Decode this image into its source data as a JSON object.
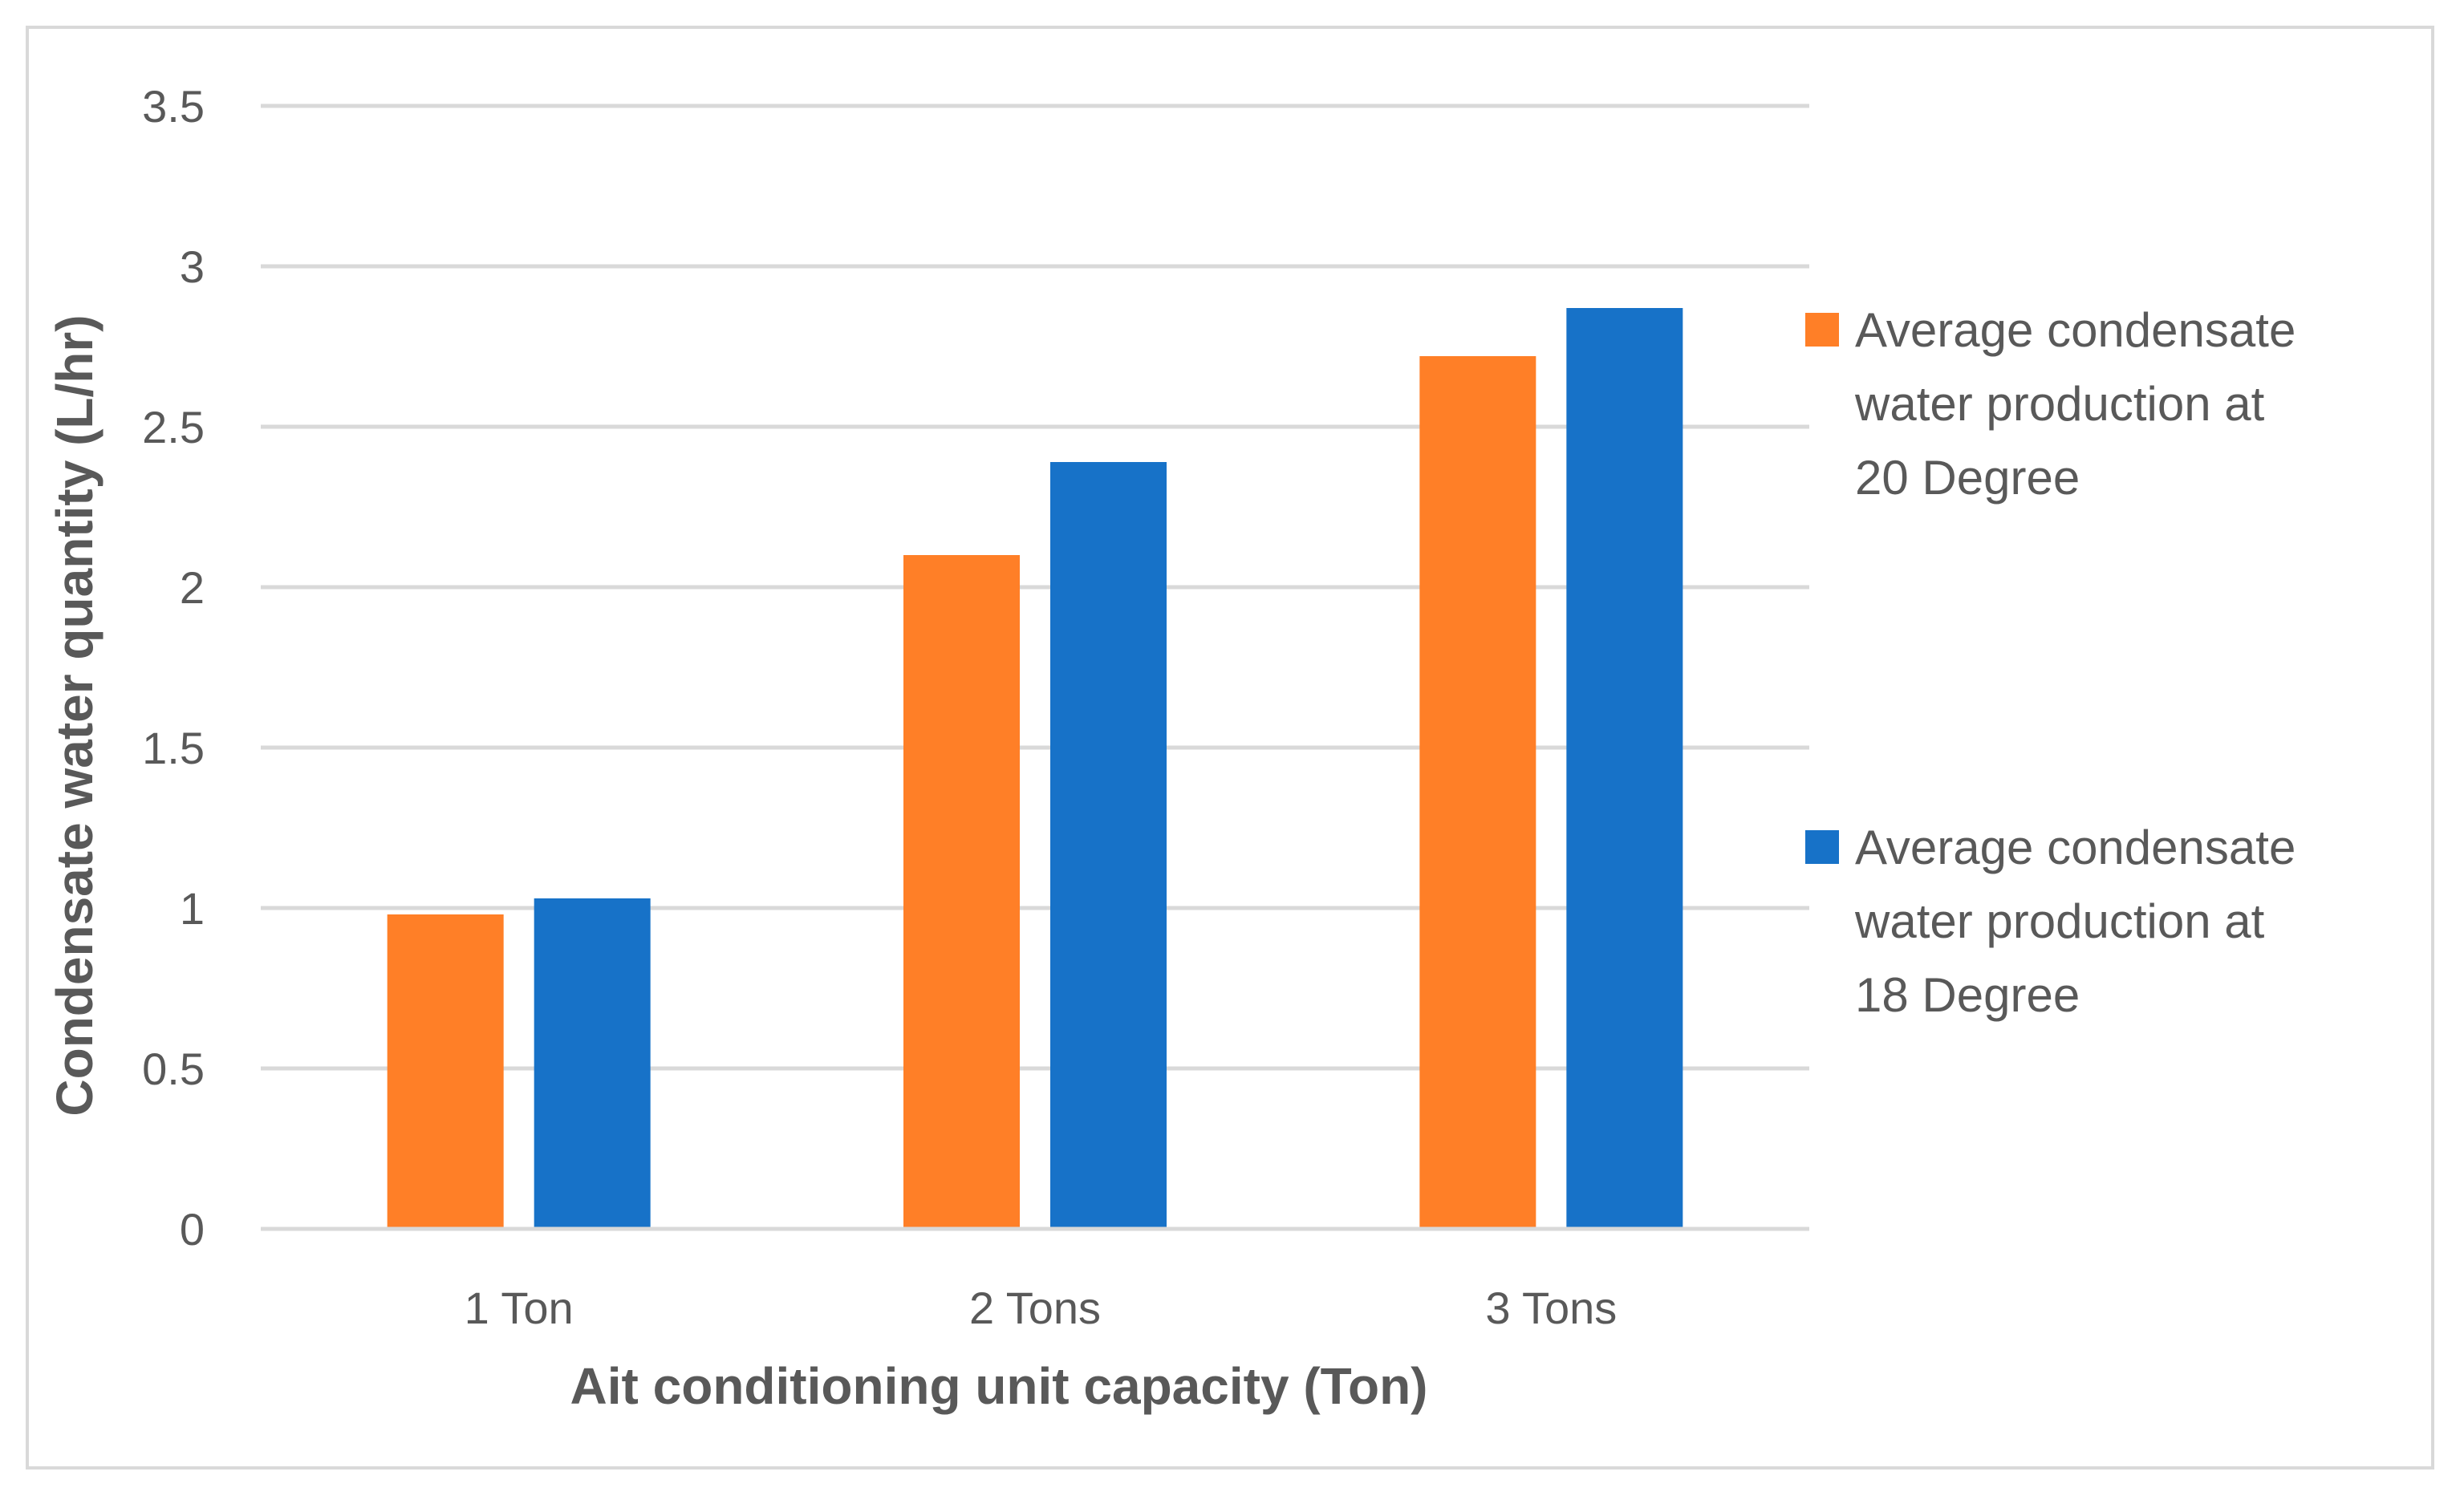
{
  "chart_data": {
    "type": "bar",
    "title": "",
    "xlabel": "Ait conditioning unit capacity (Ton)",
    "ylabel": "Condensate water quantity (L/hr)",
    "categories": [
      "1 Ton",
      "2 Tons",
      "3 Tons"
    ],
    "series": [
      {
        "name": "Average condensate water production at 20 Degree",
        "legend_lines": [
          "Average condensate",
          "water production at",
          "20 Degree"
        ],
        "color": "#FF7F27",
        "values": [
          0.98,
          2.1,
          2.72
        ]
      },
      {
        "name": "Average condensate water production at 18 Degree",
        "legend_lines": [
          "Average condensate",
          "water production at",
          "18 Degree"
        ],
        "color": "#1772C8",
        "values": [
          1.03,
          2.39,
          2.87
        ]
      }
    ],
    "ylim": [
      0,
      3.5
    ],
    "yticks": [
      0,
      0.5,
      1,
      1.5,
      2,
      2.5,
      3,
      3.5
    ],
    "ytick_labels": [
      "0",
      "0.5",
      "1",
      "1.5",
      "2",
      "2.5",
      "3",
      "3.5"
    ],
    "grid": true,
    "legend_position": "right",
    "gridline_color": "#d9d9d9",
    "text_color": "#595959"
  }
}
